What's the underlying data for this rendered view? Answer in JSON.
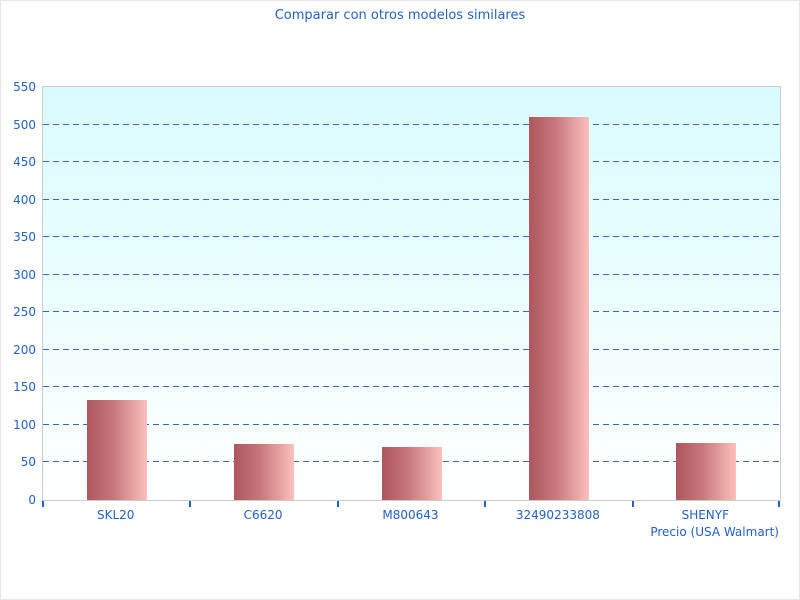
{
  "title": "Comparar con otros modelos similares",
  "colors": {
    "text_blue": "#2261c6",
    "gridline_blue": "#3a64c8",
    "plot_bg_top": "#d8fbfd",
    "plot_bg_bottom": "#ffffff",
    "plot_border": "#c9cdd0",
    "bar_gradient_left": "#ae565d",
    "bar_gradient_right": "#fcc0bd"
  },
  "chart_data": {
    "type": "bar",
    "title": "Comparar con otros modelos similares",
    "categories": [
      "SKL20",
      "C6620",
      "M800643",
      "32490233808",
      "SHENYF"
    ],
    "values": [
      133,
      75,
      71,
      510,
      76
    ],
    "xlabel": "Precio (USA Walmart)",
    "ylabel": "",
    "ylim": [
      0,
      550
    ],
    "yticks": [
      0,
      50,
      100,
      150,
      200,
      250,
      300,
      350,
      400,
      450,
      500,
      550
    ],
    "grid": "horizontal-dashed",
    "legend": "none",
    "bar_style": "horizontal pink gradient"
  }
}
